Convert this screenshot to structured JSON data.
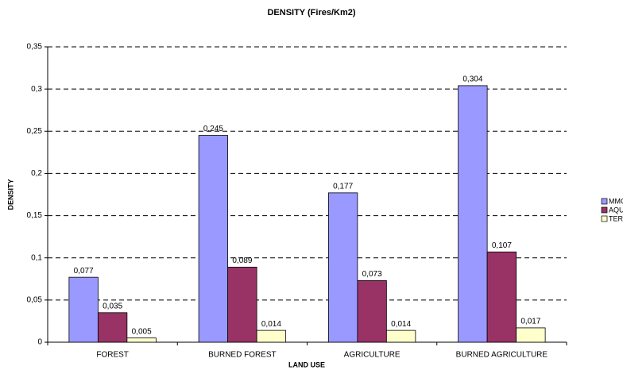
{
  "chart_data": {
    "type": "bar",
    "title": "DENSITY (Fires/Km2)",
    "y_label": "DENSITY",
    "x_label": "LAND USE",
    "categories": [
      "FOREST",
      "BURNED FOREST",
      "AGRICULTURE",
      "BURNED AGRICULTURE"
    ],
    "series": [
      {
        "name": "MMODIS",
        "color": "#9999ff",
        "values": [
          0.077,
          0.245,
          0.177,
          0.304
        ],
        "value_labels": [
          "0,077",
          "0,245",
          "0,177",
          "0,304"
        ]
      },
      {
        "name": "AQUA",
        "color": "#993366",
        "values": [
          0.035,
          0.089,
          0.073,
          0.107
        ],
        "value_labels": [
          "0,035",
          "0,089",
          "0,073",
          "0,107"
        ]
      },
      {
        "name": "TERRA",
        "color": "#ffffcc",
        "values": [
          0.005,
          0.014,
          0.014,
          0.017
        ],
        "value_labels": [
          "0,005",
          "0,014",
          "0,014",
          "0,017"
        ]
      }
    ],
    "ylim": [
      0,
      0.35
    ],
    "yticks": [
      0,
      {
        "value": 0.05,
        "label": "0,05"
      },
      {
        "value": 0.1,
        "label": "0,1"
      },
      {
        "value": 0.15,
        "label": "0,15"
      },
      {
        "value": 0.2,
        "label": "0,2"
      },
      {
        "value": 0.25,
        "label": "0,25"
      },
      {
        "value": 0.3,
        "label": "0,3"
      },
      {
        "value": 0.35,
        "label": "0,35"
      }
    ],
    "grid": true,
    "legend": "right"
  }
}
